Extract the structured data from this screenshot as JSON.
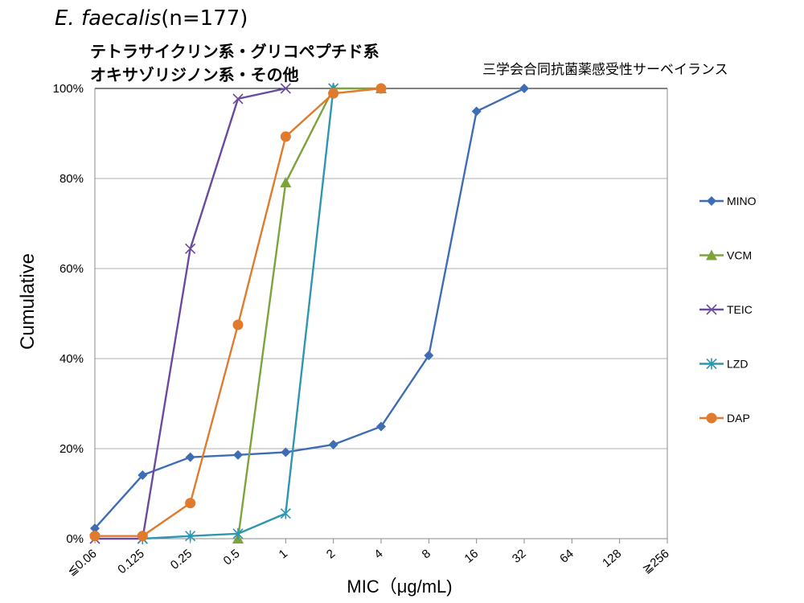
{
  "header": {
    "species": "E. faecalis",
    "count": "(n=177)",
    "subtitle_line1": "テトラサイクリン系・グリコペプチド系",
    "subtitle_line2": "オキサゾリジノン系・その他",
    "source": "三学会合同抗菌薬感受性サーベイランス"
  },
  "chart_data": {
    "type": "line",
    "title": "E. faecalis(n=177)",
    "xlabel": "MIC（μg/mL)",
    "ylabel": "Cumulative",
    "categories": [
      "≦0.06",
      "0.125",
      "0.25",
      "0.5",
      "1",
      "2",
      "4",
      "8",
      "16",
      "32",
      "64",
      "128",
      "≧256"
    ],
    "ylim": [
      0,
      100
    ],
    "yticks": [
      "0%",
      "20%",
      "40%",
      "60%",
      "80%",
      "100%"
    ],
    "grid": true,
    "legend_position": "right",
    "series": [
      {
        "name": "MINO",
        "color": "#3E6DB5",
        "marker": "diamond",
        "values": [
          2.3,
          14.1,
          18.1,
          18.6,
          19.2,
          20.9,
          24.9,
          40.7,
          94.9,
          100,
          null,
          null,
          null
        ]
      },
      {
        "name": "VCM",
        "color": "#7EA33D",
        "marker": "triangle",
        "values": [
          null,
          null,
          null,
          0,
          79.1,
          100,
          100,
          null,
          null,
          null,
          null,
          null,
          null
        ]
      },
      {
        "name": "TEIC",
        "color": "#6A4A9E",
        "marker": "x",
        "values": [
          0,
          0,
          64.4,
          97.7,
          100,
          null,
          null,
          null,
          null,
          null,
          null,
          null,
          null
        ]
      },
      {
        "name": "LZD",
        "color": "#2E96B0",
        "marker": "star",
        "values": [
          null,
          0,
          0.6,
          1.1,
          5.6,
          100,
          null,
          null,
          null,
          null,
          null,
          null,
          null
        ]
      },
      {
        "name": "DAP",
        "color": "#E07B2E",
        "marker": "circle",
        "values": [
          0.6,
          0.6,
          7.9,
          47.5,
          89.3,
          98.9,
          100,
          null,
          null,
          null,
          null,
          null,
          null
        ]
      }
    ]
  }
}
